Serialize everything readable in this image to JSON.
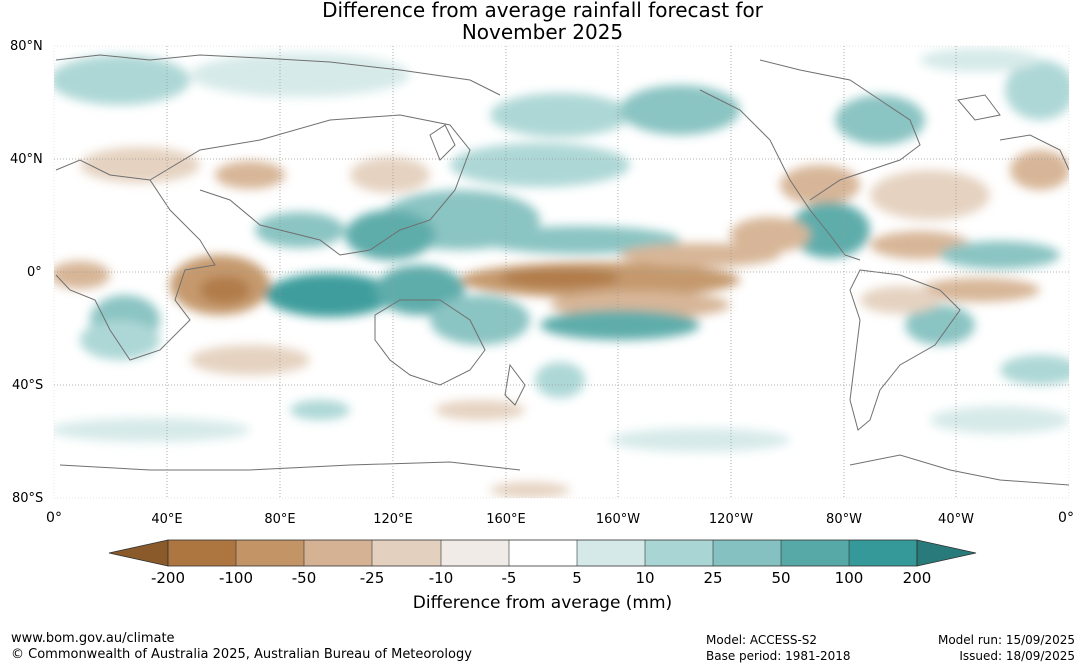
{
  "title_line1": "Difference from average rainfall forecast for",
  "title_line2": "November 2025",
  "map": {
    "lat_labels": [
      "80°N",
      "40°N",
      "0°",
      "40°S",
      "80°S"
    ],
    "lon_labels": [
      "0°",
      "40°E",
      "80°E",
      "120°E",
      "160°E",
      "160°W",
      "120°W",
      "80°W",
      "40°W",
      "0°"
    ],
    "colors": {
      "ocean_land_bg": "#ffffff",
      "coastline": "#707070",
      "grid": "#999999"
    }
  },
  "colorbar": {
    "title": "Difference from average (mm)",
    "labels": [
      "-200",
      "-100",
      "-50",
      "-25",
      "-10",
      "-5",
      "5",
      "10",
      "25",
      "50",
      "100",
      "200"
    ],
    "colors": [
      "#8b5a2b",
      "#ad7640",
      "#c29466",
      "#d5b293",
      "#e4d0be",
      "#f0ebe6",
      "#ffffff",
      "#d4e9e8",
      "#a9d5d4",
      "#84c1c0",
      "#57a9a7",
      "#349998",
      "#287b7a"
    ]
  },
  "footer": {
    "website": "www.bom.gov.au/climate",
    "copyright": "© Commonwealth of Australia 2025, Australian Bureau of Meteorology",
    "model": "Model: ACCESS-S2",
    "base_period": "Base period: 1981-2018",
    "model_run": "Model run: 15/09/2025",
    "issued": "Issued: 18/09/2025"
  }
}
